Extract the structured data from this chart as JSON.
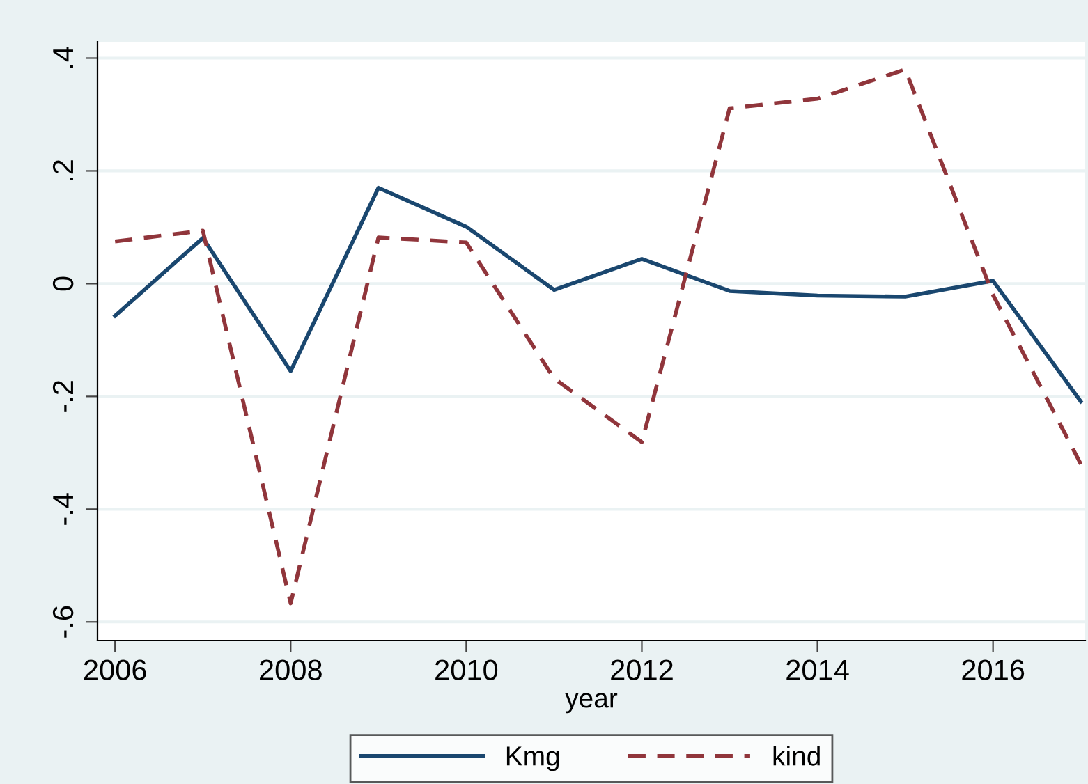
{
  "chart_data": {
    "type": "line",
    "xlabel": "year",
    "x": [
      2006,
      2007,
      2008,
      2009,
      2010,
      2011,
      2012,
      2013,
      2014,
      2015,
      2016,
      2017
    ],
    "series": [
      {
        "name": "Kmg",
        "color": "#1a476f",
        "line_style": "solid",
        "values": [
          -0.057,
          0.081,
          -0.155,
          0.17,
          0.101,
          -0.011,
          0.044,
          -0.013,
          -0.021,
          -0.023,
          0.005,
          -0.209
        ]
      },
      {
        "name": "kind",
        "color": "#90353b",
        "line_style": "dashed",
        "values": [
          0.075,
          0.094,
          -0.567,
          0.082,
          0.073,
          -0.168,
          -0.281,
          0.311,
          0.328,
          0.38,
          -0.02,
          -0.32
        ]
      }
    ],
    "xlim": [
      2005.8,
      2017.05
    ],
    "xticks": [
      2006,
      2008,
      2010,
      2012,
      2014,
      2016
    ],
    "ylim": [
      -0.633,
      0.429
    ],
    "yticks": [
      {
        "value": -0.6,
        "label": "-.6"
      },
      {
        "value": -0.4,
        "label": "-.4"
      },
      {
        "value": -0.2,
        "label": "-.2"
      },
      0,
      {
        "value": 0.2,
        "label": ".2"
      },
      {
        "value": 0.4,
        "label": ".4"
      }
    ],
    "grid": "y",
    "legend": "bottom",
    "marker": "none"
  }
}
